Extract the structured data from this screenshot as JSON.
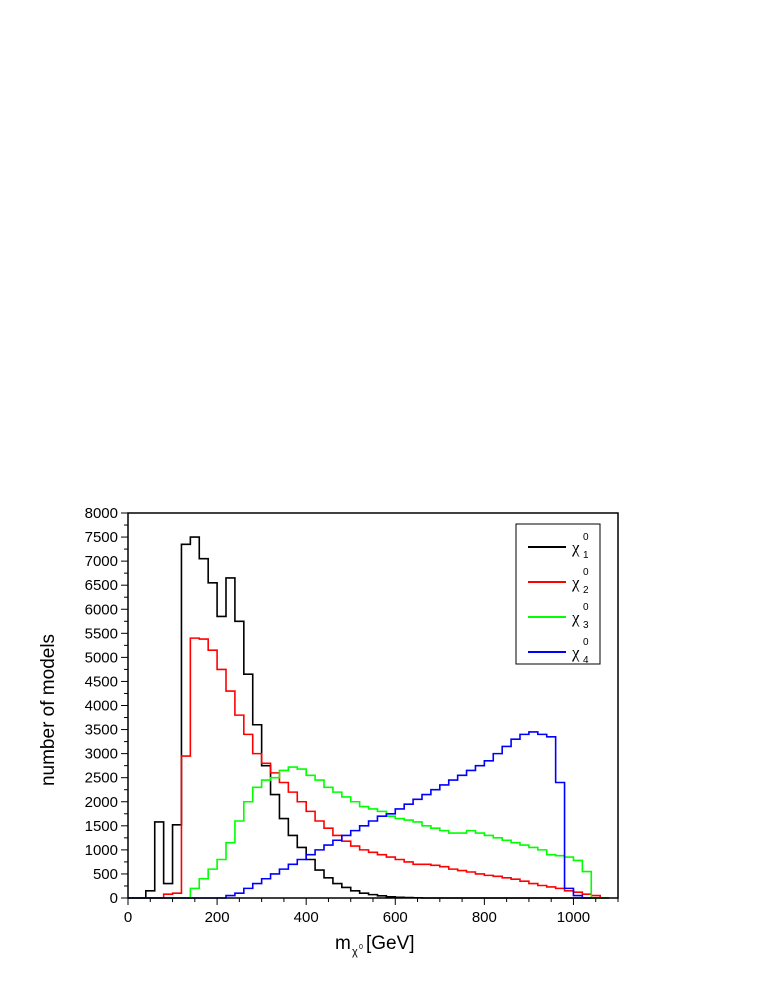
{
  "chart_data": {
    "type": "histogram",
    "xlabel": {
      "main": "m",
      "sub": "χ",
      "subsup": "0",
      "unit": "[GeV]"
    },
    "ylabel": "number of models",
    "xlim": [
      0,
      1100
    ],
    "ylim": [
      0,
      8000
    ],
    "x_ticks": [
      0,
      200,
      400,
      600,
      800,
      1000
    ],
    "y_ticks": [
      0,
      500,
      1000,
      1500,
      2000,
      2500,
      3000,
      3500,
      4000,
      4500,
      5000,
      5500,
      6000,
      6500,
      7000,
      7500,
      8000
    ],
    "grid": false,
    "legend_position": "top-right",
    "bin_start": 0,
    "bin_width": 20,
    "series": [
      {
        "name": "χ",
        "sub": "1",
        "sup": "0",
        "color": "#000000",
        "values": [
          0,
          0,
          150,
          1580,
          300,
          1520,
          7350,
          7500,
          7050,
          6550,
          5850,
          6650,
          5750,
          4650,
          3600,
          2750,
          2150,
          1650,
          1300,
          1050,
          800,
          580,
          420,
          300,
          220,
          150,
          100,
          70,
          45,
          25,
          15,
          10,
          5,
          0,
          0,
          0,
          0,
          0,
          0,
          0,
          0,
          0,
          0,
          0,
          0,
          0,
          0,
          0,
          0,
          0,
          0,
          0,
          0,
          0
        ]
      },
      {
        "name": "χ",
        "sub": "2",
        "sup": "0",
        "color": "#ff0000",
        "values": [
          0,
          0,
          0,
          0,
          80,
          100,
          2950,
          5400,
          5380,
          5150,
          4750,
          4300,
          3800,
          3400,
          3000,
          2800,
          2600,
          2400,
          2200,
          2000,
          1800,
          1600,
          1450,
          1300,
          1180,
          1080,
          1000,
          950,
          900,
          850,
          800,
          750,
          700,
          700,
          680,
          650,
          600,
          570,
          540,
          500,
          470,
          450,
          420,
          390,
          350,
          300,
          260,
          230,
          200,
          150,
          120,
          80,
          50,
          0
        ]
      },
      {
        "name": "χ",
        "sub": "3",
        "sup": "0",
        "color": "#00ff00",
        "values": [
          0,
          0,
          0,
          0,
          0,
          0,
          0,
          200,
          400,
          600,
          800,
          1150,
          1600,
          2000,
          2300,
          2450,
          2500,
          2650,
          2720,
          2680,
          2550,
          2450,
          2300,
          2200,
          2100,
          2000,
          1900,
          1850,
          1800,
          1700,
          1650,
          1620,
          1580,
          1500,
          1450,
          1400,
          1350,
          1350,
          1400,
          1350,
          1300,
          1250,
          1200,
          1150,
          1100,
          1050,
          1000,
          900,
          880,
          850,
          780,
          550,
          0,
          0
        ]
      },
      {
        "name": "χ",
        "sub": "4",
        "sup": "0",
        "color": "#0000ff",
        "values": [
          0,
          0,
          0,
          0,
          0,
          0,
          0,
          0,
          0,
          0,
          0,
          50,
          100,
          200,
          300,
          400,
          500,
          600,
          700,
          800,
          900,
          1000,
          1100,
          1200,
          1300,
          1400,
          1500,
          1600,
          1700,
          1750,
          1850,
          1950,
          2050,
          2150,
          2250,
          2350,
          2450,
          2550,
          2650,
          2750,
          2850,
          3000,
          3150,
          3300,
          3400,
          3450,
          3400,
          3350,
          2400,
          200,
          50,
          0
        ]
      }
    ]
  }
}
